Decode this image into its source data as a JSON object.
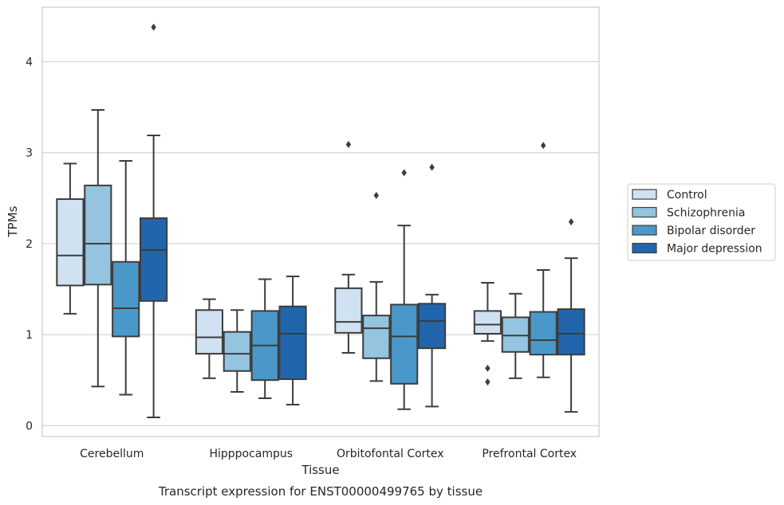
{
  "caption": "Transcript expression for ENST00000499765 by tissue",
  "chart_data": {
    "type": "box",
    "xlabel": "Tissue",
    "ylabel": "TPMs",
    "ylim": [
      -0.12,
      4.6
    ],
    "yticks": [
      0,
      1,
      2,
      3,
      4
    ],
    "grid": "horizontal",
    "legend_position": "right",
    "categories": [
      "Cerebellum",
      "Hipppocampus",
      "Orbitofontal Cortex",
      "Prefrontal Cortex"
    ],
    "series": [
      {
        "name": "Control",
        "color": "#d0e1f2",
        "boxes": [
          {
            "whislo": 1.23,
            "q1": 1.54,
            "med": 1.87,
            "q3": 2.49,
            "whishi": 2.88,
            "fliers": []
          },
          {
            "whislo": 0.52,
            "q1": 0.79,
            "med": 0.97,
            "q3": 1.27,
            "whishi": 1.39,
            "fliers": []
          },
          {
            "whislo": 0.8,
            "q1": 1.02,
            "med": 1.14,
            "q3": 1.51,
            "whishi": 1.66,
            "fliers": [
              3.09
            ]
          },
          {
            "whislo": 0.93,
            "q1": 1.01,
            "med": 1.11,
            "q3": 1.26,
            "whishi": 1.57,
            "fliers": [
              0.63,
              0.48
            ]
          }
        ]
      },
      {
        "name": "Schizophrenia",
        "color": "#94c4df",
        "boxes": [
          {
            "whislo": 0.43,
            "q1": 1.55,
            "med": 2.0,
            "q3": 2.64,
            "whishi": 3.47,
            "fliers": []
          },
          {
            "whislo": 0.37,
            "q1": 0.6,
            "med": 0.79,
            "q3": 1.03,
            "whishi": 1.27,
            "fliers": []
          },
          {
            "whislo": 0.49,
            "q1": 0.74,
            "med": 1.07,
            "q3": 1.21,
            "whishi": 1.58,
            "fliers": [
              2.53
            ]
          },
          {
            "whislo": 0.52,
            "q1": 0.81,
            "med": 0.99,
            "q3": 1.19,
            "whishi": 1.45,
            "fliers": []
          }
        ]
      },
      {
        "name": "Bipolar disorder",
        "color": "#4a98c9",
        "boxes": [
          {
            "whislo": 0.34,
            "q1": 0.98,
            "med": 1.29,
            "q3": 1.8,
            "whishi": 2.91,
            "fliers": []
          },
          {
            "whislo": 0.3,
            "q1": 0.5,
            "med": 0.88,
            "q3": 1.26,
            "whishi": 1.61,
            "fliers": []
          },
          {
            "whislo": 0.18,
            "q1": 0.46,
            "med": 0.98,
            "q3": 1.33,
            "whishi": 2.2,
            "fliers": [
              2.78
            ]
          },
          {
            "whislo": 0.53,
            "q1": 0.78,
            "med": 0.94,
            "q3": 1.25,
            "whishi": 1.71,
            "fliers": [
              3.08
            ]
          }
        ]
      },
      {
        "name": "Major depression",
        "color": "#2166ac",
        "boxes": [
          {
            "whislo": 0.09,
            "q1": 1.37,
            "med": 1.93,
            "q3": 2.28,
            "whishi": 3.19,
            "fliers": [
              4.38
            ]
          },
          {
            "whislo": 0.23,
            "q1": 0.51,
            "med": 1.01,
            "q3": 1.31,
            "whishi": 1.64,
            "fliers": []
          },
          {
            "whislo": 0.21,
            "q1": 0.85,
            "med": 1.15,
            "q3": 1.34,
            "whishi": 1.44,
            "fliers": [
              2.84
            ]
          },
          {
            "whislo": 0.15,
            "q1": 0.78,
            "med": 1.01,
            "q3": 1.28,
            "whishi": 1.84,
            "fliers": [
              2.24
            ]
          }
        ]
      }
    ]
  }
}
